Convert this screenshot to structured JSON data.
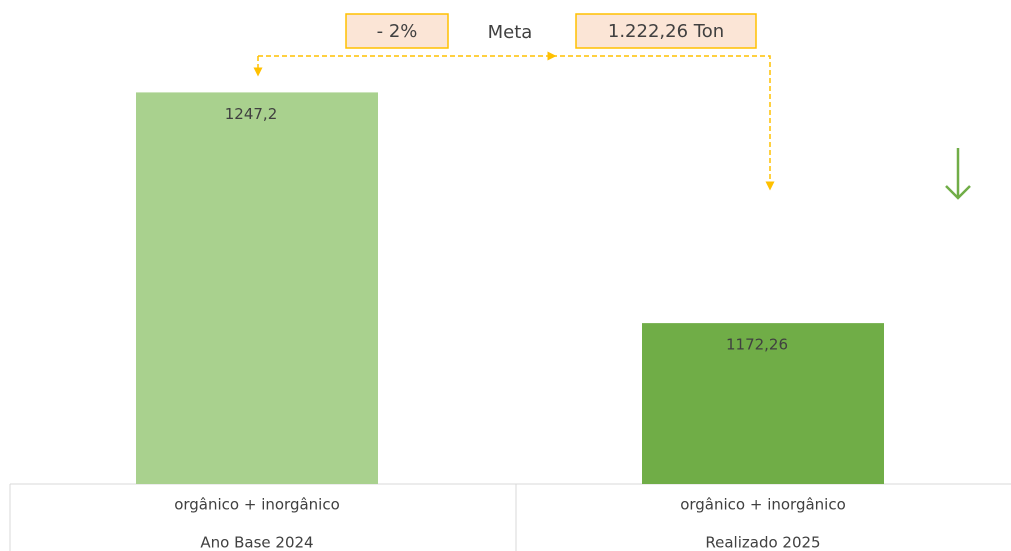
{
  "chart_data": {
    "type": "bar",
    "categories": [
      [
        "orgânico + inorgânico",
        "Ano Base 2024"
      ],
      [
        "orgânico + inorgânico",
        "Realizado 2025"
      ]
    ],
    "values": [
      1247.2,
      1172.26
    ],
    "value_labels": [
      "1247,2",
      "1172,26"
    ],
    "colors": [
      "#a9d18e",
      "#70ad47"
    ],
    "ylim": [
      1120,
      1260
    ],
    "annotations": [
      "- 2%",
      "Meta",
      "1.222,26 Ton"
    ]
  }
}
